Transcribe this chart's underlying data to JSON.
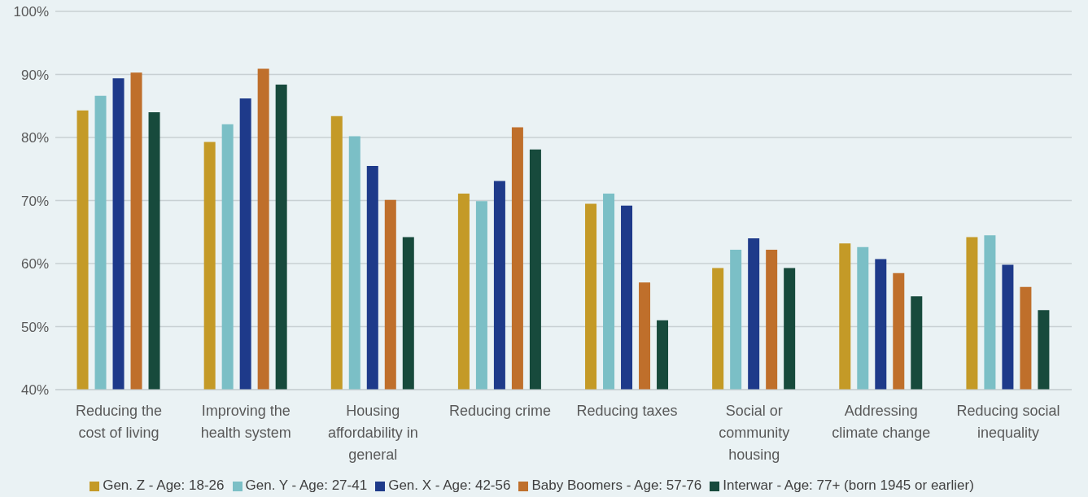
{
  "chart_data": {
    "type": "bar",
    "categories": [
      "Reducing the cost of living",
      "Improving the health system",
      "Housing affordability in general",
      "Reducing crime",
      "Reducing taxes",
      "Social or community housing",
      "Addressing climate change",
      "Reducing social inequality"
    ],
    "series": [
      {
        "name": "Gen. Z - Age: 18-26",
        "color": "#c49a27",
        "values": [
          84.3,
          79.3,
          83.4,
          71.1,
          69.5,
          59.3,
          63.2,
          64.2
        ]
      },
      {
        "name": "Gen. Y - Age: 27-41",
        "color": "#7bbfc6",
        "values": [
          86.6,
          82.1,
          80.2,
          69.9,
          71.1,
          62.2,
          62.6,
          64.5
        ]
      },
      {
        "name": "Gen. X - Age: 42-56",
        "color": "#1e3a8a",
        "values": [
          89.4,
          86.2,
          75.5,
          73.1,
          69.2,
          64.0,
          60.7,
          59.8
        ]
      },
      {
        "name": "Baby Boomers - Age: 57-76",
        "color": "#bf6f2b",
        "values": [
          90.3,
          90.9,
          70.1,
          81.6,
          57.0,
          62.2,
          58.5,
          56.3
        ]
      },
      {
        "name": "Interwar - Age: 77+ (born 1945 or earlier)",
        "color": "#174a3c",
        "values": [
          84.0,
          88.4,
          64.2,
          78.1,
          51.0,
          59.3,
          54.8,
          52.6
        ]
      }
    ],
    "ylim": [
      40,
      100
    ],
    "yticks": [
      {
        "value": 40,
        "label": "40%"
      },
      {
        "value": 50,
        "label": "50%"
      },
      {
        "value": 60,
        "label": "60%"
      },
      {
        "value": 70,
        "label": "70%"
      },
      {
        "value": 80,
        "label": "80%"
      },
      {
        "value": 90,
        "label": "90%"
      },
      {
        "value": 100,
        "label": "100%"
      }
    ],
    "grid": "y",
    "legend": "bottom"
  }
}
